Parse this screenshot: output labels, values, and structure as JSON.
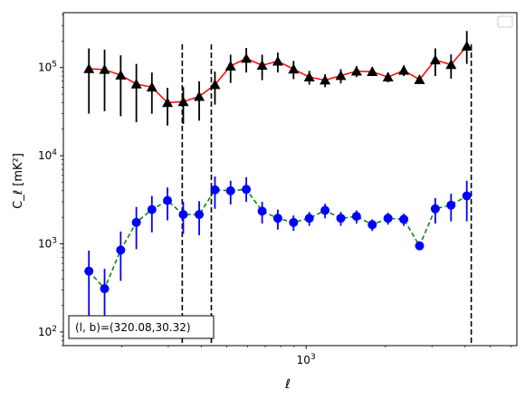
{
  "chart_data": {
    "type": "scatter",
    "xscale": "log",
    "yscale": "log",
    "xlim": [
      120,
      6300
    ],
    "ylim": [
      70,
      420000
    ],
    "xlabel": "ℓ",
    "ylabel": "C_ℓ [mK²]",
    "xticks": [
      {
        "value": 1000,
        "base": "10",
        "exp": "3"
      }
    ],
    "yticks": [
      {
        "value": 100,
        "base": "10",
        "exp": "2"
      },
      {
        "value": 1000,
        "base": "10",
        "exp": "3"
      },
      {
        "value": 10000,
        "base": "10",
        "exp": "4"
      },
      {
        "value": 100000,
        "base": "10",
        "exp": "5"
      }
    ],
    "annotation": "(l, b)=(320.08,30.32)",
    "legend": {
      "position": "top-right",
      "entries": []
    },
    "vlines": [
      339,
      437,
      4230
    ],
    "series": [
      {
        "marker": "triangle",
        "color": "#000000",
        "line_color": "#ff0000",
        "line_style": "solid",
        "points": [
          {
            "x": 150,
            "y": 97000,
            "lo": 30000,
            "hi": 165000
          },
          {
            "x": 172,
            "y": 95000,
            "lo": 32000,
            "hi": 160000
          },
          {
            "x": 198,
            "y": 82000,
            "lo": 28000,
            "hi": 138000
          },
          {
            "x": 227,
            "y": 65000,
            "lo": 24000,
            "hi": 110000
          },
          {
            "x": 260,
            "y": 60000,
            "lo": 30000,
            "hi": 88000
          },
          {
            "x": 298,
            "y": 40000,
            "lo": 22000,
            "hi": 59000
          },
          {
            "x": 342,
            "y": 41000,
            "lo": 23000,
            "hi": 60000
          },
          {
            "x": 393,
            "y": 47000,
            "lo": 25000,
            "hi": 70000
          },
          {
            "x": 451,
            "y": 64000,
            "lo": 38000,
            "hi": 90000
          },
          {
            "x": 517,
            "y": 104000,
            "lo": 67000,
            "hi": 140000
          },
          {
            "x": 593,
            "y": 127000,
            "lo": 88000,
            "hi": 167000
          },
          {
            "x": 681,
            "y": 106000,
            "lo": 72000,
            "hi": 140000
          },
          {
            "x": 781,
            "y": 118000,
            "lo": 88000,
            "hi": 148000
          },
          {
            "x": 896,
            "y": 96000,
            "lo": 74000,
            "hi": 119000
          },
          {
            "x": 1028,
            "y": 78000,
            "lo": 64000,
            "hi": 92000
          },
          {
            "x": 1180,
            "y": 72000,
            "lo": 60000,
            "hi": 84000
          },
          {
            "x": 1354,
            "y": 81000,
            "lo": 66000,
            "hi": 96000
          },
          {
            "x": 1553,
            "y": 91000,
            "lo": 78000,
            "hi": 104000
          },
          {
            "x": 1782,
            "y": 90000,
            "lo": 80000,
            "hi": 100000
          },
          {
            "x": 2045,
            "y": 78000,
            "lo": 68000,
            "hi": 88000
          },
          {
            "x": 2347,
            "y": 93000,
            "lo": 80000,
            "hi": 106000
          },
          {
            "x": 2693,
            "y": 73000,
            "lo": 66000,
            "hi": 80000
          },
          {
            "x": 3090,
            "y": 122000,
            "lo": 80000,
            "hi": 165000
          },
          {
            "x": 3546,
            "y": 108000,
            "lo": 75000,
            "hi": 141000
          },
          {
            "x": 4069,
            "y": 175000,
            "lo": 110000,
            "hi": 260000
          }
        ]
      },
      {
        "marker": "circle",
        "color": "#0000ff",
        "line_color": "#008000",
        "line_style": "dashed",
        "points": [
          {
            "x": 150,
            "y": 490,
            "lo": 150,
            "hi": 840
          },
          {
            "x": 172,
            "y": 310,
            "lo": 120,
            "hi": 520
          },
          {
            "x": 198,
            "y": 850,
            "lo": 380,
            "hi": 1380
          },
          {
            "x": 227,
            "y": 1750,
            "lo": 870,
            "hi": 2620
          },
          {
            "x": 260,
            "y": 2450,
            "lo": 1350,
            "hi": 3500
          },
          {
            "x": 298,
            "y": 3100,
            "lo": 1850,
            "hi": 4350
          },
          {
            "x": 342,
            "y": 2150,
            "lo": 1300,
            "hi": 3000
          },
          {
            "x": 393,
            "y": 2150,
            "lo": 1250,
            "hi": 3050
          },
          {
            "x": 451,
            "y": 4100,
            "lo": 2500,
            "hi": 5800
          },
          {
            "x": 517,
            "y": 4000,
            "lo": 2800,
            "hi": 5200
          },
          {
            "x": 593,
            "y": 4150,
            "lo": 3000,
            "hi": 5700
          },
          {
            "x": 681,
            "y": 2350,
            "lo": 1700,
            "hi": 3000
          },
          {
            "x": 781,
            "y": 1950,
            "lo": 1450,
            "hi": 2450
          },
          {
            "x": 896,
            "y": 1750,
            "lo": 1400,
            "hi": 2100
          },
          {
            "x": 1028,
            "y": 1950,
            "lo": 1600,
            "hi": 2300
          },
          {
            "x": 1180,
            "y": 2400,
            "lo": 1950,
            "hi": 2850
          },
          {
            "x": 1354,
            "y": 1950,
            "lo": 1600,
            "hi": 2300
          },
          {
            "x": 1553,
            "y": 2050,
            "lo": 1700,
            "hi": 2400
          },
          {
            "x": 1782,
            "y": 1650,
            "lo": 1400,
            "hi": 1900
          },
          {
            "x": 2045,
            "y": 1950,
            "lo": 1650,
            "hi": 2250
          },
          {
            "x": 2347,
            "y": 1900,
            "lo": 1600,
            "hi": 2200
          },
          {
            "x": 2693,
            "y": 950,
            "lo": 850,
            "hi": 1050
          },
          {
            "x": 3090,
            "y": 2500,
            "lo": 1700,
            "hi": 3300
          },
          {
            "x": 3546,
            "y": 2750,
            "lo": 1800,
            "hi": 3700
          },
          {
            "x": 4069,
            "y": 3500,
            "lo": 1800,
            "hi": 5200
          }
        ]
      }
    ]
  }
}
